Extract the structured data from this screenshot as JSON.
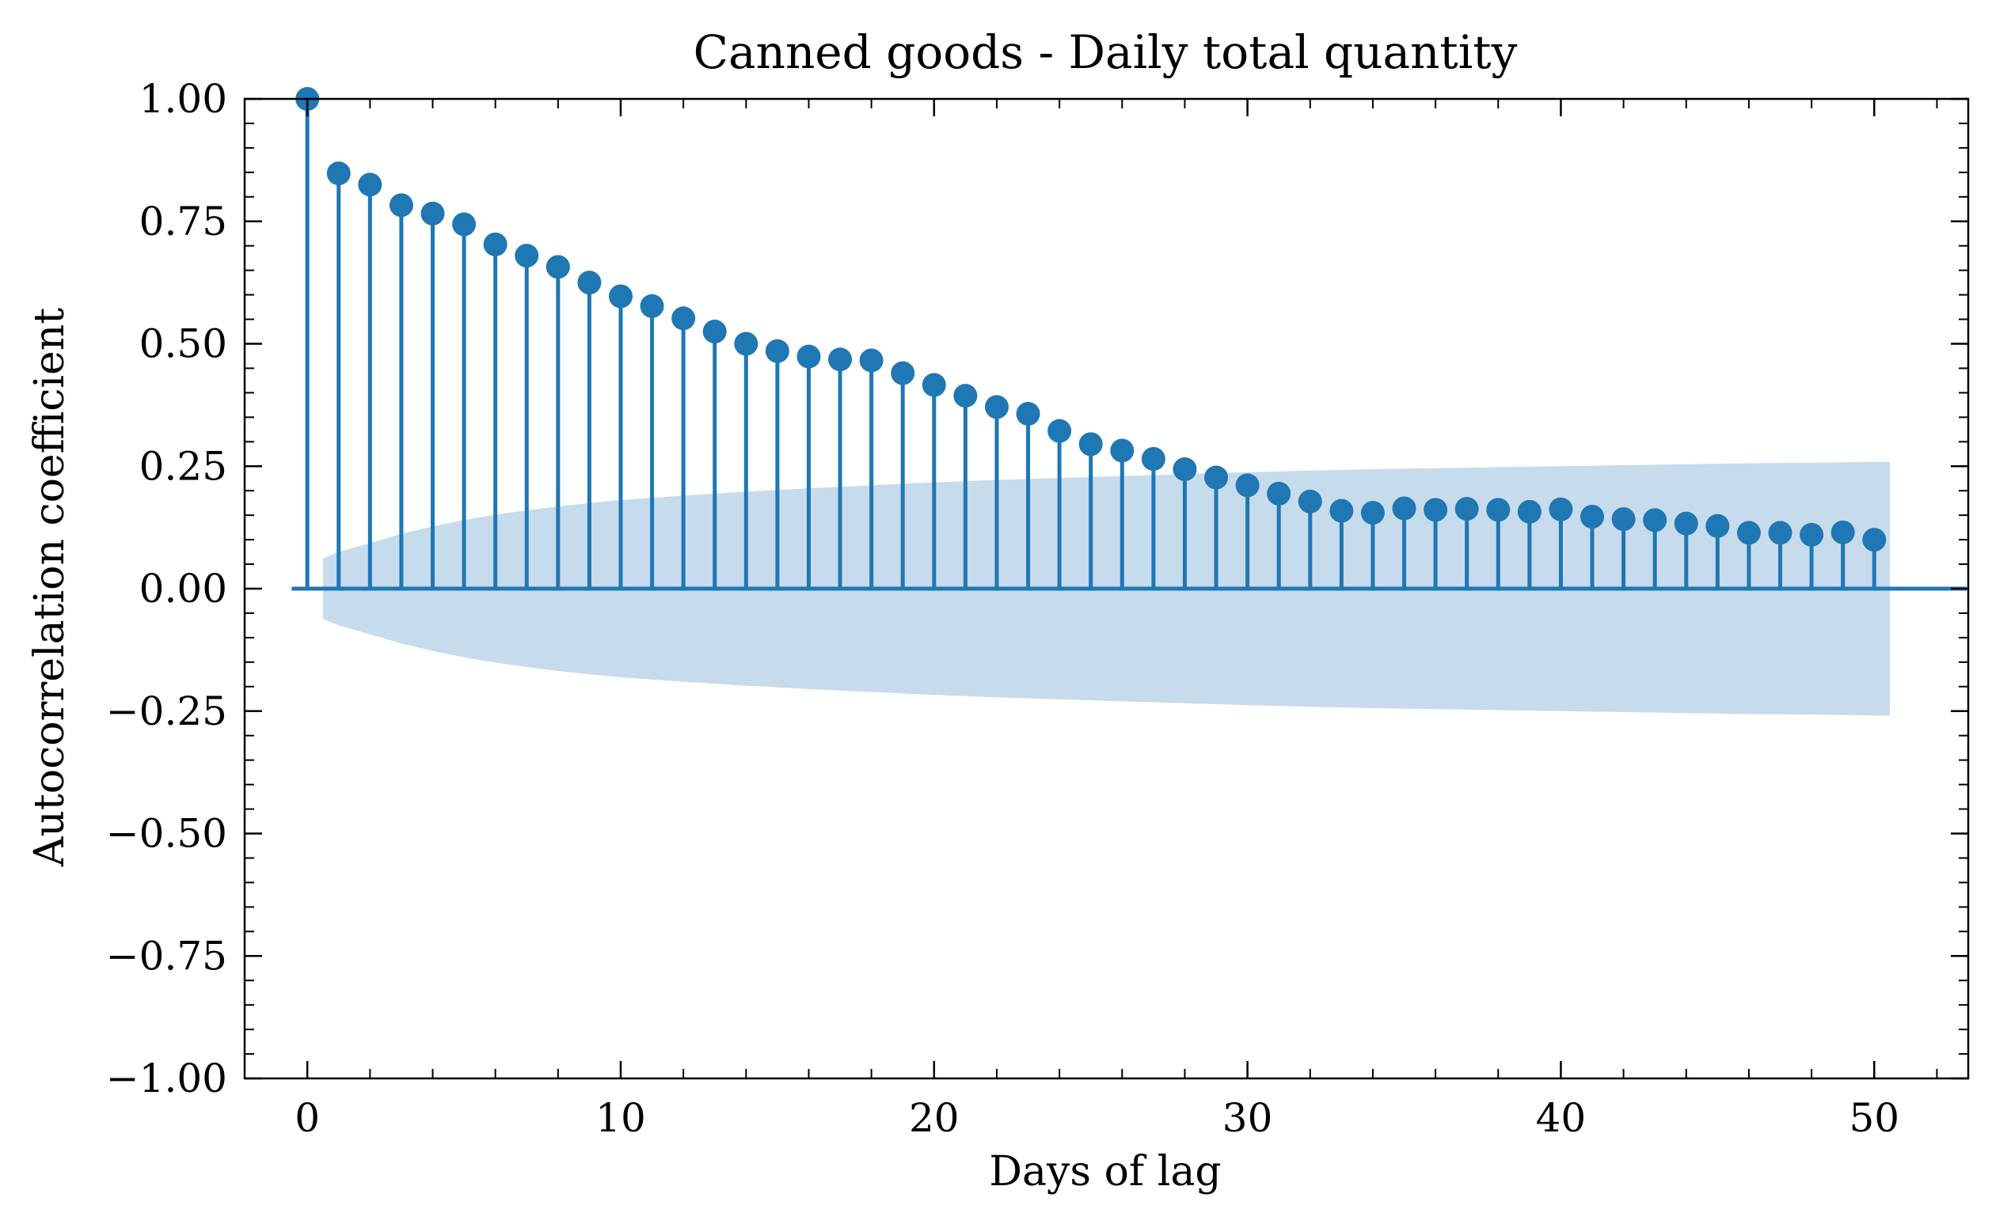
{
  "chart_data": {
    "type": "stem",
    "title": "Canned goods - Daily total quantity",
    "xlabel": "Days of lag",
    "ylabel": "Autocorrelation coefficient",
    "xlim": [
      -2.0,
      53.0
    ],
    "ylim": [
      -1.0,
      1.0
    ],
    "x_ticks": [
      0,
      10,
      20,
      30,
      40,
      50
    ],
    "x_tick_labels": [
      "0",
      "10",
      "20",
      "30",
      "40",
      "50"
    ],
    "x_minor_step": 2,
    "y_ticks": [
      -1.0,
      -0.75,
      -0.5,
      -0.25,
      0.0,
      0.25,
      0.5,
      0.75,
      1.0
    ],
    "y_tick_labels": [
      "−1.00",
      "−0.75",
      "−0.50",
      "−0.25",
      "0.00",
      "0.25",
      "0.50",
      "0.75",
      "1.00"
    ],
    "y_minor_step": 0.05,
    "grid": false,
    "x": [
      0,
      1,
      2,
      3,
      4,
      5,
      6,
      7,
      8,
      9,
      10,
      11,
      12,
      13,
      14,
      15,
      16,
      17,
      18,
      19,
      20,
      21,
      22,
      23,
      24,
      25,
      26,
      27,
      28,
      29,
      30,
      31,
      32,
      33,
      34,
      35,
      36,
      37,
      38,
      39,
      40,
      41,
      42,
      43,
      44,
      45,
      46,
      47,
      48,
      49,
      50
    ],
    "values": [
      1.0,
      0.848,
      0.825,
      0.783,
      0.766,
      0.744,
      0.703,
      0.68,
      0.657,
      0.625,
      0.597,
      0.577,
      0.552,
      0.525,
      0.5,
      0.485,
      0.474,
      0.468,
      0.466,
      0.44,
      0.416,
      0.394,
      0.371,
      0.357,
      0.322,
      0.295,
      0.282,
      0.265,
      0.244,
      0.227,
      0.211,
      0.194,
      0.178,
      0.159,
      0.155,
      0.164,
      0.161,
      0.163,
      0.161,
      0.157,
      0.162,
      0.147,
      0.142,
      0.14,
      0.133,
      0.128,
      0.114,
      0.114,
      0.11,
      0.115,
      0.1
    ],
    "confidence_band": {
      "x": [
        0.5,
        1,
        2,
        3,
        4,
        5,
        6,
        7,
        8,
        9,
        10,
        12,
        14,
        16,
        18,
        20,
        22,
        24,
        26,
        28,
        30,
        32,
        34,
        36,
        38,
        40,
        42,
        44,
        46,
        48,
        50,
        50.5
      ],
      "upper": [
        0.062,
        0.075,
        0.093,
        0.112,
        0.127,
        0.14,
        0.151,
        0.16,
        0.168,
        0.175,
        0.181,
        0.19,
        0.198,
        0.205,
        0.211,
        0.217,
        0.222,
        0.226,
        0.23,
        0.234,
        0.238,
        0.241,
        0.244,
        0.246,
        0.248,
        0.25,
        0.252,
        0.254,
        0.256,
        0.257,
        0.259,
        0.259
      ]
    },
    "colors": {
      "stem": "#1f77b4",
      "band": "#c6dbec",
      "axes": "#000000"
    }
  }
}
